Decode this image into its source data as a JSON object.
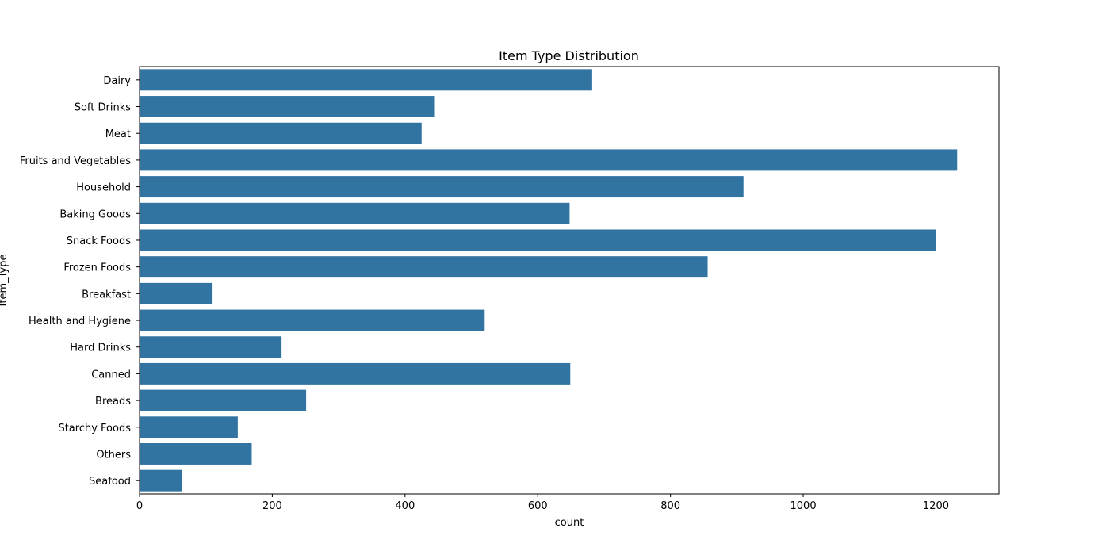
{
  "chart_data": {
    "type": "bar",
    "orientation": "horizontal",
    "title": "Item Type Distribution",
    "xlabel": "count",
    "ylabel": "Item_Type",
    "categories": [
      "Dairy",
      "Soft Drinks",
      "Meat",
      "Fruits and Vegetables",
      "Household",
      "Baking Goods",
      "Snack Foods",
      "Frozen Foods",
      "Breakfast",
      "Health and Hygiene",
      "Hard Drinks",
      "Canned",
      "Breads",
      "Starchy Foods",
      "Others",
      "Seafood"
    ],
    "values": [
      682,
      445,
      425,
      1232,
      910,
      648,
      1200,
      856,
      110,
      520,
      214,
      649,
      251,
      148,
      169,
      64
    ],
    "xlim": [
      0,
      1295
    ],
    "xticks": [
      0,
      200,
      400,
      600,
      800,
      1000,
      1200
    ],
    "grid": false,
    "legend": "none",
    "bar_color": "#3274a1"
  }
}
